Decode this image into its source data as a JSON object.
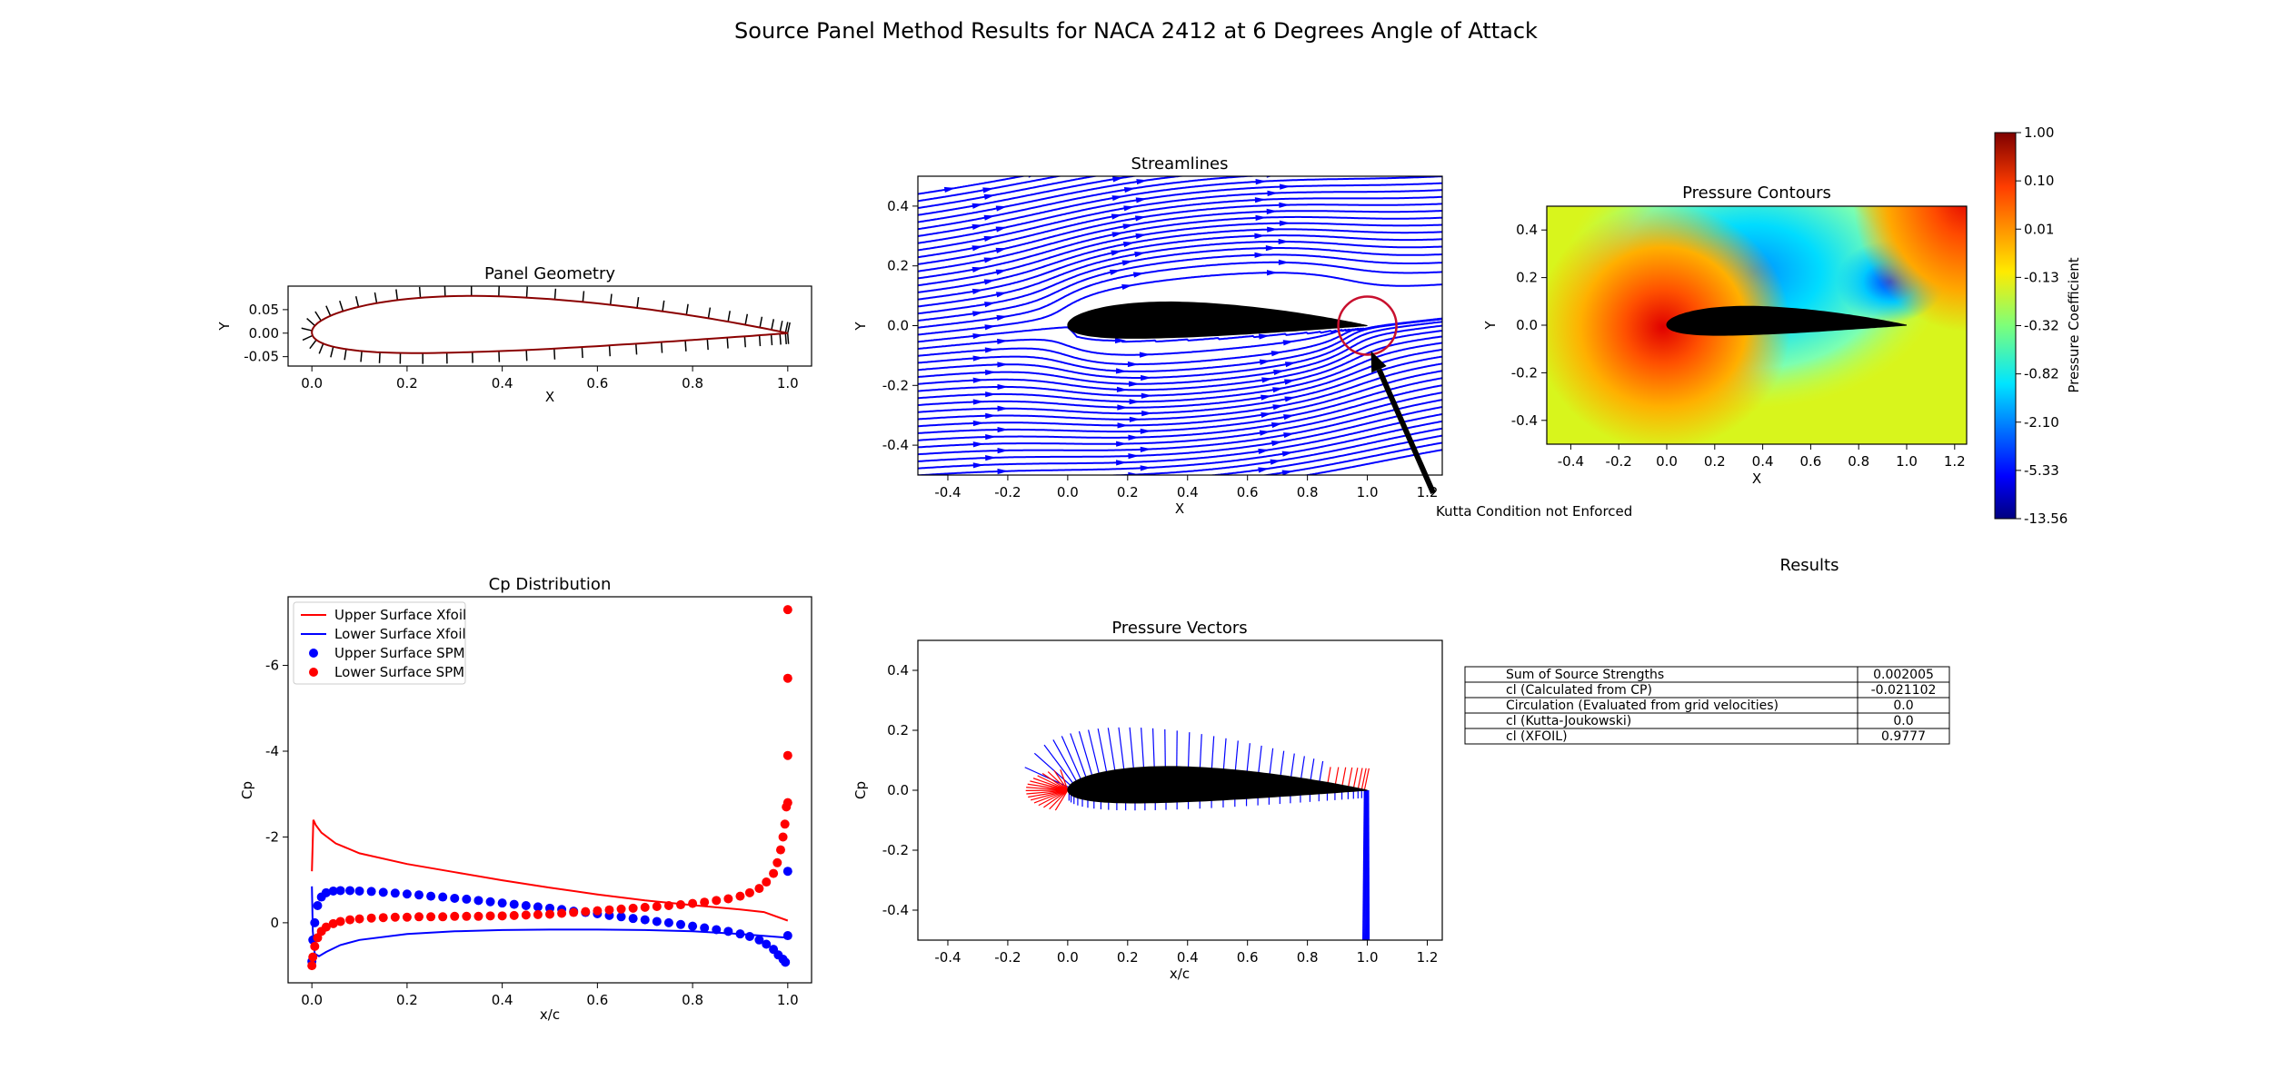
{
  "suptitle": "Source Panel Method Results for NACA 2412 at 6 Degrees Angle of Attack",
  "colors": {
    "upper": "#ff0000",
    "lower": "#0000ff",
    "airfoil": "#000000",
    "stream": "#0000ff",
    "circle": "#c8102e"
  },
  "chart_data": [
    {
      "id": "geometry",
      "type": "line",
      "title": "Panel Geometry",
      "xlabel": "X",
      "ylabel": "Y",
      "xlim": [
        -0.05,
        1.05
      ],
      "ylim": [
        -0.07,
        0.1
      ],
      "xticks": [
        "0.0",
        "0.2",
        "0.4",
        "0.6",
        "0.8",
        "1.0"
      ],
      "xtick_values": [
        0,
        0.2,
        0.4,
        0.6,
        0.8,
        1.0
      ],
      "yticks": [
        "0.05",
        "0.00",
        "-0.05"
      ],
      "ytick_values": [
        0.05,
        0,
        -0.05
      ],
      "airfoil": {
        "thickness": 0.12,
        "camber": 0.02,
        "camber_position": 0.4
      },
      "panel_normals": true
    },
    {
      "id": "streamlines",
      "type": "streamline",
      "title": "Streamlines",
      "xlabel": "X",
      "ylabel": "Y",
      "xlim": [
        -0.5,
        1.25
      ],
      "ylim": [
        -0.5,
        0.5
      ],
      "xticks": [
        "-0.4",
        "-0.2",
        "0.0",
        "0.2",
        "0.4",
        "0.6",
        "0.8",
        "1.0",
        "1.2"
      ],
      "xtick_values": [
        -0.4,
        -0.2,
        0,
        0.2,
        0.4,
        0.6,
        0.8,
        1.0,
        1.2
      ],
      "yticks": [
        "0.4",
        "0.2",
        "0.0",
        "-0.2",
        "-0.4"
      ],
      "ytick_values": [
        0.4,
        0.2,
        0,
        -0.2,
        -0.4
      ],
      "annotation": {
        "text": "Kutta Condition not Enforced",
        "point": [
          1.0,
          0.0
        ],
        "circle_center": [
          1.0,
          0.0
        ],
        "text_pos": [
          1.22,
          -0.56
        ]
      }
    },
    {
      "id": "pressure_contours",
      "type": "heatmap",
      "title": "Pressure Contours",
      "xlabel": "X",
      "ylabel": "Y",
      "xlim": [
        -0.5,
        1.25
      ],
      "ylim": [
        -0.5,
        0.5
      ],
      "xticks": [
        "-0.4",
        "-0.2",
        "0.0",
        "0.2",
        "0.4",
        "0.6",
        "0.8",
        "1.0",
        "1.2"
      ],
      "xtick_values": [
        -0.4,
        -0.2,
        0,
        0.2,
        0.4,
        0.6,
        0.8,
        1.0,
        1.2
      ],
      "yticks": [
        "0.4",
        "0.2",
        "0.0",
        "-0.2",
        "-0.4"
      ],
      "ytick_values": [
        0.4,
        0.2,
        0,
        -0.2,
        -0.4
      ],
      "colorbar_label": "Pressure Coefficient",
      "colorbar_ticks": [
        "1.00",
        "0.10",
        "0.01",
        "-0.13",
        "-0.32",
        "-0.82",
        "-2.10",
        "-5.33",
        "-13.56"
      ],
      "colorbar_tick_values": [
        1.0,
        0.1,
        0.01,
        -0.13,
        -0.32,
        -0.82,
        -2.1,
        -5.33,
        -13.56
      ]
    },
    {
      "id": "cp",
      "type": "line",
      "title": "Cp Distribution",
      "xlabel": "x/c",
      "ylabel": "Cp",
      "xlim": [
        -0.05,
        1.05
      ],
      "ylim_inverted": [
        1.4,
        -7.6
      ],
      "xticks": [
        "0.0",
        "0.2",
        "0.4",
        "0.6",
        "0.8",
        "1.0"
      ],
      "xtick_values": [
        0,
        0.2,
        0.4,
        0.6,
        0.8,
        1.0
      ],
      "yticks": [
        "-6",
        "-4",
        "-2",
        "0"
      ],
      "ytick_values": [
        -6,
        -4,
        -2,
        0
      ],
      "legend": [
        "Upper Surface Xfoil",
        "Lower Surface Xfoil",
        "Upper Surface SPM",
        "Lower Surface SPM"
      ],
      "series": [
        {
          "name": "Upper Surface Xfoil",
          "kind": "line",
          "x": [
            0.0,
            0.003,
            0.008,
            0.02,
            0.05,
            0.1,
            0.2,
            0.3,
            0.4,
            0.5,
            0.6,
            0.7,
            0.8,
            0.9,
            0.95,
            1.0
          ],
          "y": [
            -1.2,
            -2.4,
            -2.28,
            -2.1,
            -1.85,
            -1.62,
            -1.37,
            -1.18,
            -0.99,
            -0.82,
            -0.66,
            -0.52,
            -0.41,
            -0.31,
            -0.25,
            -0.05
          ]
        },
        {
          "name": "Lower Surface Xfoil",
          "kind": "line",
          "x": [
            0.0,
            0.002,
            0.006,
            0.015,
            0.03,
            0.06,
            0.1,
            0.2,
            0.3,
            0.4,
            0.5,
            0.6,
            0.7,
            0.8,
            0.9,
            1.0
          ],
          "y": [
            -0.85,
            0.2,
            0.72,
            0.78,
            0.68,
            0.52,
            0.4,
            0.26,
            0.2,
            0.17,
            0.16,
            0.16,
            0.17,
            0.2,
            0.26,
            0.35
          ]
        },
        {
          "name": "Upper Surface SPM",
          "kind": "scatter",
          "x": [
            0.0,
            0.002,
            0.006,
            0.012,
            0.02,
            0.03,
            0.045,
            0.06,
            0.08,
            0.1,
            0.125,
            0.15,
            0.175,
            0.2,
            0.225,
            0.25,
            0.275,
            0.3,
            0.325,
            0.35,
            0.375,
            0.4,
            0.425,
            0.45,
            0.475,
            0.5,
            0.525,
            0.55,
            0.575,
            0.6,
            0.625,
            0.65,
            0.675,
            0.7,
            0.725,
            0.75,
            0.775,
            0.8,
            0.825,
            0.85,
            0.875,
            0.9,
            0.92,
            0.94,
            0.955,
            0.97,
            0.98,
            0.99,
            0.995,
            1.0,
            1.0
          ],
          "y": [
            0.9,
            0.4,
            0.0,
            -0.4,
            -0.6,
            -0.7,
            -0.74,
            -0.75,
            -0.75,
            -0.74,
            -0.73,
            -0.71,
            -0.69,
            -0.67,
            -0.65,
            -0.62,
            -0.6,
            -0.57,
            -0.55,
            -0.52,
            -0.49,
            -0.46,
            -0.43,
            -0.4,
            -0.37,
            -0.34,
            -0.31,
            -0.27,
            -0.24,
            -0.21,
            -0.17,
            -0.14,
            -0.1,
            -0.07,
            -0.03,
            0.0,
            0.04,
            0.08,
            0.12,
            0.16,
            0.2,
            0.26,
            0.32,
            0.4,
            0.5,
            0.62,
            0.75,
            0.85,
            0.92,
            -1.2,
            0.3
          ]
        },
        {
          "name": "Lower Surface SPM",
          "kind": "scatter",
          "x": [
            0.0,
            0.002,
            0.006,
            0.012,
            0.02,
            0.03,
            0.045,
            0.06,
            0.08,
            0.1,
            0.125,
            0.15,
            0.175,
            0.2,
            0.225,
            0.25,
            0.275,
            0.3,
            0.325,
            0.35,
            0.375,
            0.4,
            0.425,
            0.45,
            0.475,
            0.5,
            0.525,
            0.55,
            0.575,
            0.6,
            0.625,
            0.65,
            0.675,
            0.7,
            0.725,
            0.75,
            0.775,
            0.8,
            0.825,
            0.85,
            0.875,
            0.9,
            0.92,
            0.94,
            0.955,
            0.97,
            0.978,
            0.985,
            0.99,
            0.994,
            0.997,
            1.0,
            1.0,
            1.0,
            1.0
          ],
          "y": [
            1.0,
            0.8,
            0.55,
            0.35,
            0.2,
            0.1,
            0.02,
            -0.03,
            -0.07,
            -0.09,
            -0.11,
            -0.12,
            -0.13,
            -0.13,
            -0.14,
            -0.14,
            -0.14,
            -0.15,
            -0.15,
            -0.15,
            -0.16,
            -0.16,
            -0.17,
            -0.18,
            -0.19,
            -0.2,
            -0.22,
            -0.24,
            -0.26,
            -0.28,
            -0.3,
            -0.32,
            -0.34,
            -0.36,
            -0.38,
            -0.4,
            -0.42,
            -0.45,
            -0.48,
            -0.52,
            -0.56,
            -0.62,
            -0.7,
            -0.8,
            -0.95,
            -1.15,
            -1.4,
            -1.7,
            -2.0,
            -2.3,
            -2.7,
            -3.9,
            -5.7,
            -7.3,
            -2.8
          ]
        }
      ]
    },
    {
      "id": "pressure_vectors",
      "type": "quiver",
      "title": "Pressure Vectors",
      "xlabel": "x/c",
      "ylabel": "Cp",
      "xlim": [
        -0.5,
        1.25
      ],
      "ylim": [
        -0.5,
        0.5
      ],
      "xticks": [
        "-0.4",
        "-0.2",
        "0.0",
        "0.2",
        "0.4",
        "0.6",
        "0.8",
        "1.0",
        "1.2"
      ],
      "xtick_values": [
        -0.4,
        -0.2,
        0,
        0.2,
        0.4,
        0.6,
        0.8,
        1.0,
        1.2
      ],
      "yticks": [
        "0.4",
        "0.2",
        "0.0",
        "-0.2",
        "-0.4"
      ],
      "ytick_values": [
        0.4,
        0.2,
        0,
        -0.2,
        -0.4
      ]
    }
  ],
  "results": {
    "title": "Results",
    "rows": [
      {
        "label": "Sum of Source Strengths",
        "value": "0.002005"
      },
      {
        "label": "cl (Calculated from CP)",
        "value": "-0.021102"
      },
      {
        "label": "Circulation (Evaluated from grid velocities)",
        "value": "0.0"
      },
      {
        "label": "cl (Kutta-Joukowski)",
        "value": "0.0"
      },
      {
        "label": "cl (XFOIL)",
        "value": "0.9777"
      }
    ]
  }
}
